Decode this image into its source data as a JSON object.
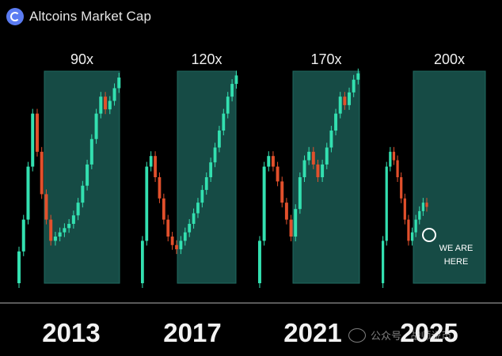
{
  "header": {
    "title": "Altcoins Market Cap",
    "logo_icon": "coin-logo-icon"
  },
  "chart_data": {
    "type": "candlestick",
    "title": "Altcoins Market Cap",
    "cycles": [
      {
        "year": "2013",
        "multiplier": "90x",
        "values": [
          0.15,
          0.3,
          0.55,
          0.8,
          0.62,
          0.42,
          0.3,
          0.2,
          0.22,
          0.24,
          0.26,
          0.28,
          0.32,
          0.38,
          0.46,
          0.56,
          0.68,
          0.8,
          0.88,
          0.82,
          0.86,
          0.92,
          0.97
        ]
      },
      {
        "year": "2017",
        "multiplier": "120x",
        "values": [
          0.2,
          0.55,
          0.6,
          0.5,
          0.4,
          0.3,
          0.22,
          0.18,
          0.16,
          0.2,
          0.24,
          0.28,
          0.33,
          0.38,
          0.44,
          0.5,
          0.57,
          0.64,
          0.72,
          0.8,
          0.88,
          0.94,
          0.98
        ]
      },
      {
        "year": "2021",
        "multiplier": "170x",
        "values": [
          0.2,
          0.55,
          0.6,
          0.55,
          0.48,
          0.38,
          0.3,
          0.22,
          0.35,
          0.5,
          0.58,
          0.62,
          0.56,
          0.5,
          0.56,
          0.64,
          0.72,
          0.8,
          0.88,
          0.84,
          0.9,
          0.96,
          0.99
        ]
      },
      {
        "year": "2025",
        "multiplier": "200x",
        "values": [
          0.2,
          0.55,
          0.62,
          0.58,
          0.5,
          0.4,
          0.3,
          0.2,
          0.24,
          0.3,
          0.34,
          0.38,
          0.36
        ]
      }
    ],
    "annotation": {
      "line1": "WE ARE",
      "line2": "HERE"
    },
    "colors": {
      "up": "#33e0b0",
      "down": "#e2502c",
      "box": "#164b45",
      "box_border": "#1f6a60",
      "axis": "#888888"
    }
  },
  "watermark": {
    "text": "公众号 · 战师说币"
  }
}
